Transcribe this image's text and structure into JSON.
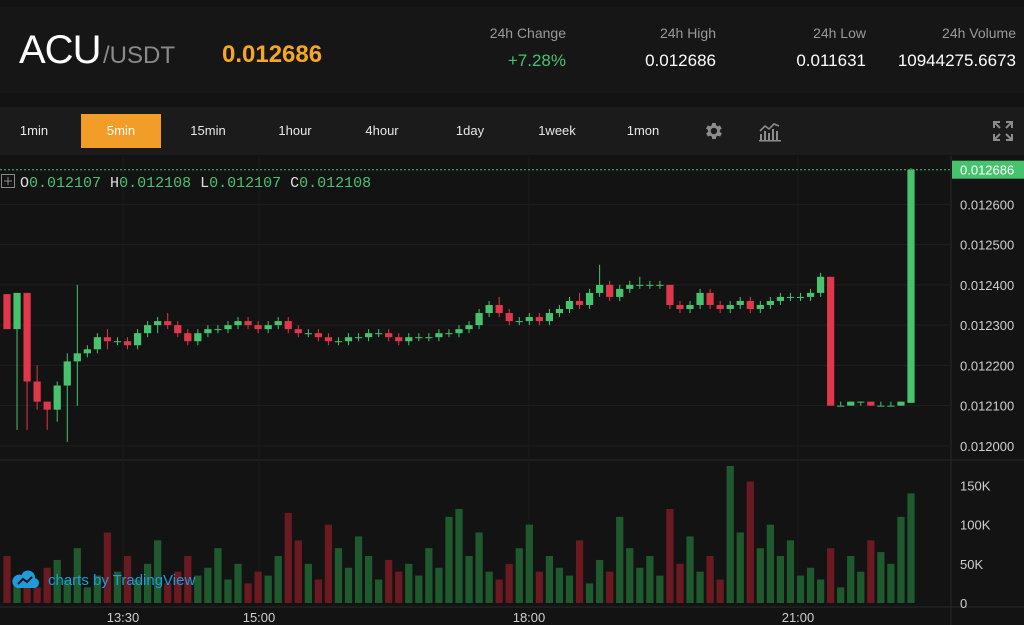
{
  "header": {
    "base": "ACU",
    "quote": "/USDT",
    "last_price": "0.012686",
    "stats": [
      {
        "label": "24h Change",
        "value": "+7.28%",
        "positive": true
      },
      {
        "label": "24h High",
        "value": "0.012686"
      },
      {
        "label": "24h Low",
        "value": "0.011631"
      },
      {
        "label": "24h Volume",
        "value": "10944275.6673"
      }
    ]
  },
  "toolbar": {
    "intervals": [
      "1min",
      "5min",
      "15min",
      "1hour",
      "4hour",
      "1day",
      "1week",
      "1mon"
    ],
    "active_interval": "5min",
    "icons": [
      "settings-icon",
      "indicators-icon",
      "fullscreen-icon"
    ]
  },
  "legend": {
    "o_label": "O",
    "o": "0.012107",
    "h_label": "H",
    "h": "0.012108",
    "l_label": "L",
    "l": "0.012107",
    "c_label": "C",
    "c": "0.012108"
  },
  "branding": {
    "text": "charts by TradingView"
  },
  "colors": {
    "up": "#47c36e",
    "down": "#e0374b",
    "accent": "#f29d27",
    "background": "#131313"
  },
  "chart_data": {
    "type": "candlestick",
    "price_axis_labels": [
      "0.012600",
      "0.012500",
      "0.012400",
      "0.012300",
      "0.012200",
      "0.012100",
      "0.012000"
    ],
    "price_range": [
      0.01197,
      0.01272
    ],
    "current_price_label": "0.012686",
    "volume_axis_labels": [
      "150K",
      "100K",
      "50K",
      "0"
    ],
    "volume_range": [
      0,
      180000
    ],
    "time_labels": [
      "13:30",
      "15:00",
      "18:00",
      "21:00"
    ],
    "candles": [
      [
        0.012377,
        0.012377,
        0.01229,
        0.01229
      ],
      [
        0.01229,
        0.01238,
        0.01204,
        0.01238
      ],
      [
        0.01238,
        0.01238,
        0.01204,
        0.01216
      ],
      [
        0.01216,
        0.0122,
        0.01209,
        0.01211
      ],
      [
        0.01211,
        0.01211,
        0.01204,
        0.01209
      ],
      [
        0.01209,
        0.01216,
        0.01206,
        0.01215
      ],
      [
        0.01215,
        0.01223,
        0.01201,
        0.01221
      ],
      [
        0.01221,
        0.0124,
        0.0121,
        0.01223
      ],
      [
        0.01223,
        0.01225,
        0.01222,
        0.01224
      ],
      [
        0.01224,
        0.01228,
        0.01223,
        0.01227
      ],
      [
        0.01227,
        0.01229,
        0.01224,
        0.01226
      ],
      [
        0.01226,
        0.01227,
        0.01225,
        0.01226
      ],
      [
        0.01226,
        0.01227,
        0.01224,
        0.01225
      ],
      [
        0.01225,
        0.01229,
        0.01224,
        0.01228
      ],
      [
        0.01228,
        0.01231,
        0.01227,
        0.0123
      ],
      [
        0.0123,
        0.01232,
        0.01228,
        0.01231
      ],
      [
        0.01231,
        0.01233,
        0.01229,
        0.0123
      ],
      [
        0.0123,
        0.01231,
        0.01227,
        0.01228
      ],
      [
        0.01228,
        0.01229,
        0.01225,
        0.01226
      ],
      [
        0.01226,
        0.01229,
        0.01225,
        0.01228
      ],
      [
        0.01228,
        0.0123,
        0.01227,
        0.01229
      ],
      [
        0.01229,
        0.0123,
        0.01228,
        0.01229
      ],
      [
        0.01229,
        0.01231,
        0.01228,
        0.0123
      ],
      [
        0.0123,
        0.01232,
        0.01229,
        0.01231
      ],
      [
        0.01231,
        0.01232,
        0.01229,
        0.0123
      ],
      [
        0.0123,
        0.01231,
        0.01228,
        0.01229
      ],
      [
        0.01229,
        0.01231,
        0.01228,
        0.0123
      ],
      [
        0.0123,
        0.01232,
        0.01229,
        0.01231
      ],
      [
        0.01231,
        0.01232,
        0.01228,
        0.01229
      ],
      [
        0.01229,
        0.0123,
        0.01227,
        0.01228
      ],
      [
        0.01228,
        0.01229,
        0.01227,
        0.01228
      ],
      [
        0.01228,
        0.01229,
        0.01226,
        0.01227
      ],
      [
        0.01227,
        0.01228,
        0.01225,
        0.01226
      ],
      [
        0.01226,
        0.01227,
        0.01225,
        0.01226
      ],
      [
        0.01226,
        0.01228,
        0.01225,
        0.01227
      ],
      [
        0.01227,
        0.01228,
        0.01226,
        0.01227
      ],
      [
        0.01227,
        0.01229,
        0.01226,
        0.01228
      ],
      [
        0.01228,
        0.01229,
        0.01227,
        0.01228
      ],
      [
        0.01228,
        0.01229,
        0.01226,
        0.01227
      ],
      [
        0.01227,
        0.01228,
        0.01225,
        0.01226
      ],
      [
        0.01226,
        0.01228,
        0.01225,
        0.01227
      ],
      [
        0.01227,
        0.01228,
        0.01226,
        0.01227
      ],
      [
        0.01227,
        0.01228,
        0.01226,
        0.01227
      ],
      [
        0.01227,
        0.01229,
        0.01226,
        0.01228
      ],
      [
        0.01228,
        0.01229,
        0.01227,
        0.01228
      ],
      [
        0.01228,
        0.0123,
        0.01227,
        0.01229
      ],
      [
        0.01229,
        0.01231,
        0.01228,
        0.0123
      ],
      [
        0.0123,
        0.01234,
        0.01229,
        0.01233
      ],
      [
        0.01233,
        0.01236,
        0.01232,
        0.01235
      ],
      [
        0.01235,
        0.01237,
        0.01232,
        0.01233
      ],
      [
        0.01233,
        0.01234,
        0.0123,
        0.01231
      ],
      [
        0.01231,
        0.01232,
        0.0123,
        0.01231
      ],
      [
        0.01231,
        0.01233,
        0.0123,
        0.01232
      ],
      [
        0.01232,
        0.01233,
        0.0123,
        0.01231
      ],
      [
        0.01231,
        0.01234,
        0.0123,
        0.01233
      ],
      [
        0.01233,
        0.01235,
        0.01232,
        0.01234
      ],
      [
        0.01234,
        0.01237,
        0.01233,
        0.01236
      ],
      [
        0.01236,
        0.01238,
        0.01234,
        0.01235
      ],
      [
        0.01235,
        0.01239,
        0.01234,
        0.01238
      ],
      [
        0.01238,
        0.01245,
        0.01237,
        0.0124
      ],
      [
        0.0124,
        0.01241,
        0.01236,
        0.01237
      ],
      [
        0.01237,
        0.0124,
        0.01236,
        0.01239
      ],
      [
        0.01239,
        0.01241,
        0.01238,
        0.0124
      ],
      [
        0.0124,
        0.01242,
        0.01239,
        0.0124
      ],
      [
        0.0124,
        0.01241,
        0.01239,
        0.0124
      ],
      [
        0.0124,
        0.01241,
        0.01239,
        0.0124
      ],
      [
        0.0124,
        0.0124,
        0.01234,
        0.01235
      ],
      [
        0.01235,
        0.01236,
        0.01233,
        0.01234
      ],
      [
        0.01234,
        0.01236,
        0.01233,
        0.01235
      ],
      [
        0.01235,
        0.01239,
        0.01234,
        0.01238
      ],
      [
        0.01238,
        0.01239,
        0.01234,
        0.01235
      ],
      [
        0.01235,
        0.01236,
        0.01233,
        0.01234
      ],
      [
        0.01234,
        0.01236,
        0.01233,
        0.01235
      ],
      [
        0.01235,
        0.01237,
        0.01234,
        0.01236
      ],
      [
        0.01236,
        0.01237,
        0.01233,
        0.01234
      ],
      [
        0.01234,
        0.01236,
        0.01233,
        0.01235
      ],
      [
        0.01235,
        0.01237,
        0.01234,
        0.01236
      ],
      [
        0.01236,
        0.01238,
        0.01235,
        0.01237
      ],
      [
        0.01237,
        0.01238,
        0.01236,
        0.01237
      ],
      [
        0.01237,
        0.01238,
        0.01236,
        0.01237
      ],
      [
        0.01237,
        0.01239,
        0.01236,
        0.01238
      ],
      [
        0.01238,
        0.01243,
        0.01237,
        0.01242
      ],
      [
        0.01242,
        0.01242,
        0.0121,
        0.0121
      ],
      [
        0.0121,
        0.01211,
        0.0121,
        0.0121
      ],
      [
        0.0121,
        0.01211,
        0.0121,
        0.01211
      ],
      [
        0.01211,
        0.01211,
        0.0121,
        0.01211
      ],
      [
        0.01211,
        0.01211,
        0.0121,
        0.0121
      ],
      [
        0.0121,
        0.01211,
        0.0121,
        0.0121
      ],
      [
        0.0121,
        0.01211,
        0.0121,
        0.0121
      ],
      [
        0.0121,
        0.01211,
        0.0121,
        0.01211
      ],
      [
        0.012107,
        0.01269,
        0.012107,
        0.012686
      ]
    ],
    "volumes": [
      60000,
      25000,
      40000,
      20000,
      45000,
      55000,
      30000,
      70000,
      20000,
      35000,
      90000,
      40000,
      60000,
      30000,
      50000,
      80000,
      25000,
      40000,
      60000,
      35000,
      45000,
      70000,
      30000,
      50000,
      25000,
      40000,
      35000,
      60000,
      115000,
      80000,
      50000,
      30000,
      100000,
      70000,
      45000,
      85000,
      60000,
      30000,
      55000,
      40000,
      50000,
      35000,
      70000,
      45000,
      110000,
      120000,
      60000,
      90000,
      40000,
      30000,
      50000,
      70000,
      100000,
      40000,
      60000,
      45000,
      35000,
      80000,
      25000,
      55000,
      40000,
      110000,
      70000,
      45000,
      60000,
      35000,
      120000,
      50000,
      85000,
      40000,
      60000,
      30000,
      175000,
      90000,
      155000,
      70000,
      100000,
      60000,
      80000,
      35000,
      45000,
      30000,
      70000,
      20000,
      60000,
      40000,
      80000,
      65000,
      50000,
      110000,
      140000
    ]
  }
}
